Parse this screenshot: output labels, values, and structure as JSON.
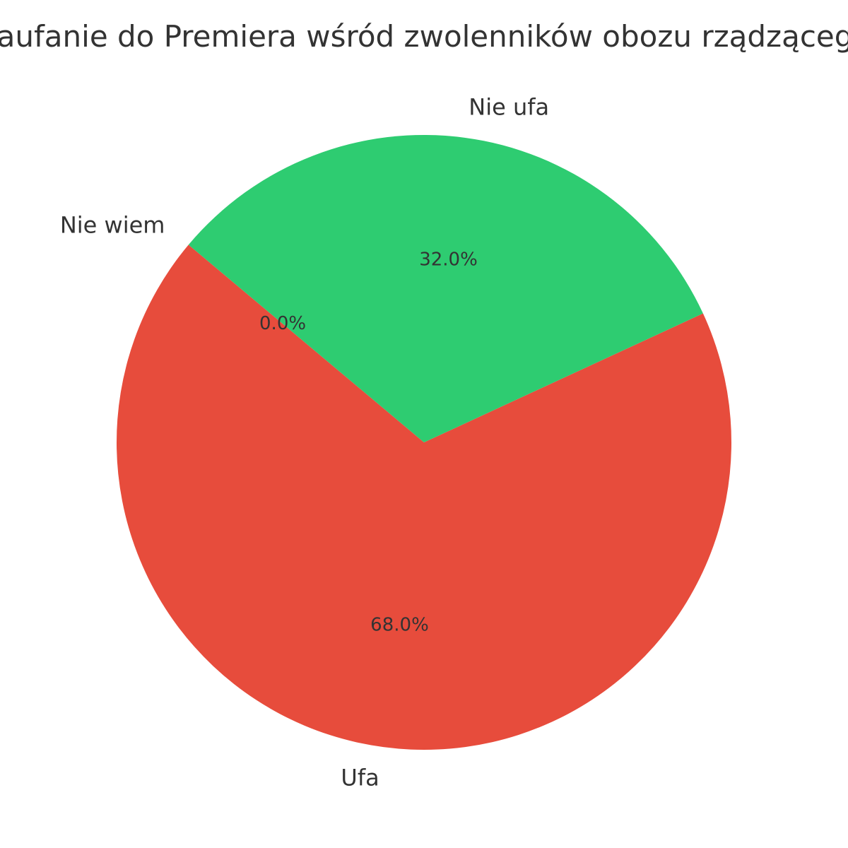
{
  "chart_data": {
    "type": "pie",
    "title": "Zaufanie do Premiera wśród zwolenników obozu rządzącego",
    "categories": [
      "Ufa",
      "Nie ufa",
      "Nie wiem"
    ],
    "values": [
      68.0,
      32.0,
      0.0
    ],
    "percent_labels": [
      "68.0%",
      "32.0%",
      "0.0%"
    ],
    "colors": [
      "#e74c3c",
      "#2ecc71",
      "#3498db"
    ],
    "start_angle_deg": 140,
    "direction": "counterclockwise",
    "legend": "none"
  }
}
